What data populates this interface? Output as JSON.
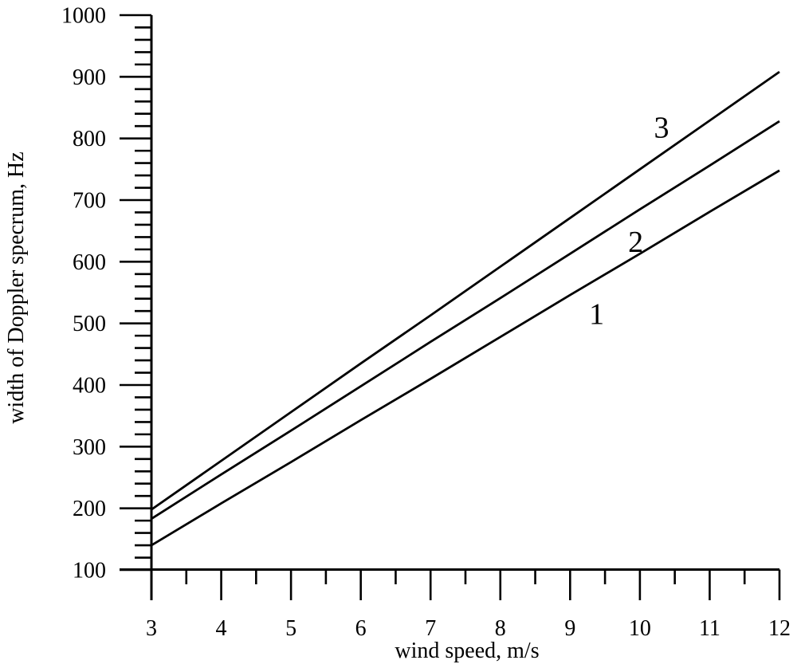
{
  "figure": {
    "background": "#ffffff",
    "ink_color": "#000000"
  },
  "chart_data": {
    "type": "line",
    "title": "",
    "xlabel": "wind speed, m/s",
    "ylabel": "width of Doppler specrum, Hz",
    "xlim": [
      3,
      12
    ],
    "ylim": [
      100,
      1000
    ],
    "xticks": [
      3,
      4,
      5,
      6,
      7,
      8,
      9,
      10,
      11,
      12
    ],
    "yticks": [
      100,
      200,
      300,
      400,
      500,
      600,
      700,
      800,
      900,
      1000
    ],
    "x_minor_step": 0.5,
    "y_minor_step": 20,
    "grid": false,
    "legend": "none",
    "line_color": "#000000",
    "x": [
      3,
      4,
      5,
      6,
      7,
      8,
      9,
      10,
      11,
      12
    ],
    "series": [
      {
        "name": "1",
        "values": [
          140,
          208,
          275,
          343,
          410,
          478,
          546,
          613,
          681,
          748
        ]
      },
      {
        "name": "2",
        "values": [
          183,
          255,
          326,
          398,
          470,
          541,
          613,
          685,
          756,
          828
        ]
      },
      {
        "name": "3",
        "values": [
          198,
          277,
          356,
          435,
          513,
          592,
          671,
          750,
          829,
          908
        ]
      }
    ],
    "annotations": [
      {
        "text": "1",
        "x": 9.38,
        "y": 516
      },
      {
        "text": "2",
        "x": 9.94,
        "y": 633
      },
      {
        "text": "3",
        "x": 10.31,
        "y": 818
      }
    ]
  }
}
